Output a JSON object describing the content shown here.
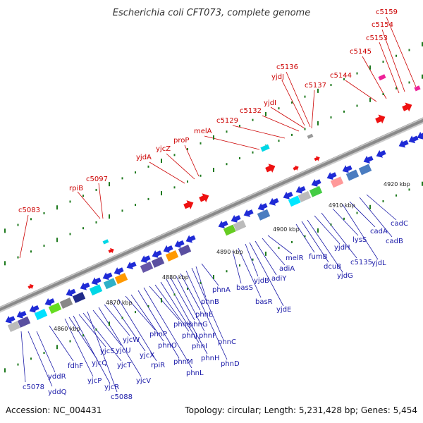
{
  "title": "Escherichia coli CFT073, complete genome",
  "footer": {
    "accession": "Accession: NC_004431",
    "summary": "Topology: circular; Length: 5,231,428 bp; Genes: 5,454"
  },
  "colors": {
    "arrow_blue": "#1f2bd6",
    "label_red": "#cc0000",
    "label_blue": "#1a1aa8",
    "backbone": "#8a8a8a",
    "tick_green": "#1f7a1f"
  },
  "scale_labels": [
    "4860 kbp",
    "4870 kbp",
    "4880 kbp",
    "4890 kbp",
    "4900 kbp",
    "4910 kbp",
    "4920 kbp"
  ],
  "red_labels": [
    "c5083",
    "rpiB",
    "c5097",
    "yjdA",
    "yjcZ",
    "proP",
    "melA",
    "c5129",
    "c5132",
    "yjdI",
    "yjdJ",
    "c5136",
    "c5137",
    "c5144",
    "c5145",
    "c5153",
    "c5154",
    "c5159"
  ],
  "blue_labels": [
    "c5078",
    "yddQ",
    "yddR",
    "fdhF",
    "yjcP",
    "yjcQ",
    "yjcR",
    "yjcS",
    "yjcT",
    "c5088",
    "yjcU",
    "yjcV",
    "yjcW",
    "yjcX",
    "rpiR",
    "phnP",
    "phnO",
    "phnM",
    "phnL",
    "phnK",
    "phnJ",
    "phnI",
    "phnH",
    "phnG",
    "phnF",
    "phnE",
    "phnD",
    "phnC",
    "phnB",
    "phnA",
    "basS",
    "basR",
    "yjdB",
    "yjdE",
    "adiY",
    "adiA",
    "melR",
    "fumB",
    "dcuB",
    "yjdG",
    "yjdH",
    "c5135",
    "lysS",
    "yjdL",
    "cadA",
    "cadB",
    "cadC"
  ]
}
